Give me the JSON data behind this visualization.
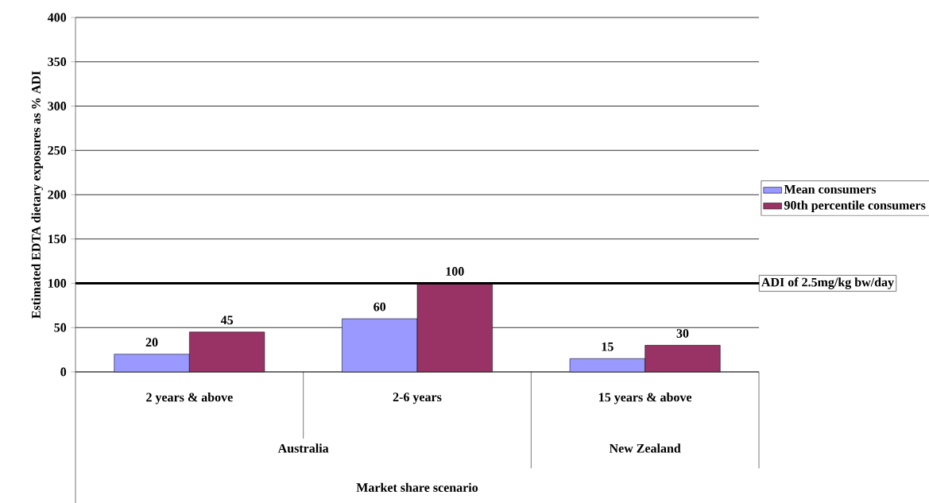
{
  "chart_data": {
    "type": "bar",
    "ylabel": "Estimated EDTA dietary exposures as % ADI",
    "categories": [
      "2 years & above",
      "2-6 years",
      "15 years & above"
    ],
    "series": [
      {
        "name": "Mean consumers",
        "color": "#9999ff",
        "values": [
          20,
          60,
          15
        ]
      },
      {
        "name": "90th percentile consumers",
        "color": "#993366",
        "values": [
          45,
          100,
          30
        ]
      }
    ],
    "ylim": [
      0,
      400
    ],
    "yticks": [
      0,
      50,
      100,
      150,
      200,
      250,
      300,
      350,
      400
    ],
    "grid": "y",
    "legend": "right",
    "data_labels": true,
    "ref_lines": [
      {
        "axis": "y",
        "value": 100,
        "label": "ADI of 2.5mg/kg bw/day",
        "color": "#000000"
      }
    ],
    "annotations": [
      "Australia",
      "New Zealand",
      "Market share scenario"
    ]
  }
}
